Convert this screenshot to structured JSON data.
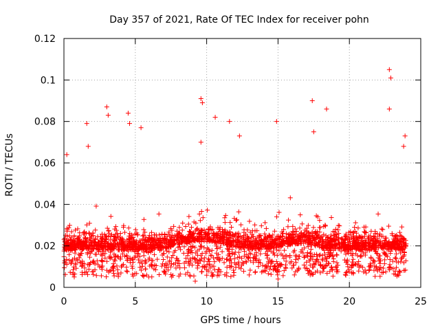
{
  "chart_data": {
    "type": "scatter",
    "title": "Day 357 of 2021, Rate Of TEC Index for receiver pohn",
    "xlabel": "GPS time / hours",
    "ylabel": "ROTI / TECUs",
    "xlim": [
      0,
      25
    ],
    "ylim": [
      0,
      0.12
    ],
    "xticks": [
      0,
      5,
      10,
      15,
      20,
      25
    ],
    "xtick_labels": [
      "0",
      "5",
      "10",
      "15",
      "20",
      "25"
    ],
    "yticks": [
      0,
      0.02,
      0.04,
      0.06,
      0.08,
      0.1,
      0.12
    ],
    "ytick_labels": [
      "0",
      "0.02",
      "0.04",
      "0.06",
      "0.08",
      "0.1",
      "0.12"
    ],
    "grid": true,
    "marker": "+",
    "series_color": "#ff0000",
    "data_range_x": [
      0,
      24
    ],
    "bulk_range_y": [
      0.005,
      0.045
    ],
    "notable_points": [
      {
        "x": 0.2,
        "y": 0.064
      },
      {
        "x": 1.6,
        "y": 0.079
      },
      {
        "x": 1.7,
        "y": 0.068
      },
      {
        "x": 3.0,
        "y": 0.087
      },
      {
        "x": 3.1,
        "y": 0.083
      },
      {
        "x": 4.5,
        "y": 0.084
      },
      {
        "x": 4.6,
        "y": 0.079
      },
      {
        "x": 5.4,
        "y": 0.077
      },
      {
        "x": 9.6,
        "y": 0.091
      },
      {
        "x": 9.7,
        "y": 0.089
      },
      {
        "x": 9.6,
        "y": 0.07
      },
      {
        "x": 10.6,
        "y": 0.082
      },
      {
        "x": 11.6,
        "y": 0.08
      },
      {
        "x": 12.3,
        "y": 0.073
      },
      {
        "x": 14.9,
        "y": 0.08
      },
      {
        "x": 17.4,
        "y": 0.09
      },
      {
        "x": 17.5,
        "y": 0.075
      },
      {
        "x": 18.4,
        "y": 0.086
      },
      {
        "x": 22.8,
        "y": 0.105
      },
      {
        "x": 22.9,
        "y": 0.101
      },
      {
        "x": 22.8,
        "y": 0.086
      },
      {
        "x": 23.9,
        "y": 0.073
      },
      {
        "x": 23.8,
        "y": 0.068
      },
      {
        "x": 9.2,
        "y": 0.003
      },
      {
        "x": 15.0,
        "y": 0.004
      }
    ]
  }
}
